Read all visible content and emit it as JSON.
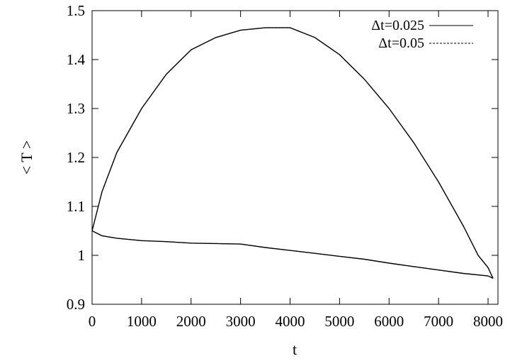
{
  "chart_data": {
    "type": "line",
    "title": "",
    "xlabel": "t",
    "ylabel": "< T >",
    "xlim": [
      0,
      8200
    ],
    "ylim": [
      0.9,
      1.5
    ],
    "xticks": [
      0,
      1000,
      2000,
      3000,
      4000,
      5000,
      6000,
      7000,
      8000
    ],
    "xtick_labels": [
      "0",
      "1000",
      "2000",
      "3000",
      "4000",
      "5000",
      "6000",
      "7000",
      "8000"
    ],
    "yticks": [
      0.9,
      1.0,
      1.1,
      1.2,
      1.3,
      1.4,
      1.5
    ],
    "ytick_labels": [
      "0.9",
      "1",
      "1.1",
      "1.2",
      "1.3",
      "1.4",
      "1.5"
    ],
    "grid": false,
    "legend_position": "top-right",
    "series": [
      {
        "name": "Δt=0.025",
        "style": "solid",
        "color": "#000000",
        "segments": [
          {
            "x": [
              0,
              200,
              500,
              1000,
              1500,
              2000,
              2500,
              3000,
              3500,
              4000,
              4500,
              5000,
              5500,
              6000,
              6500,
              7000,
              7500,
              8000,
              8100
            ],
            "y": [
              1.05,
              1.04,
              1.035,
              1.03,
              1.028,
              1.025,
              1.024,
              1.023,
              1.016,
              1.01,
              1.004,
              0.998,
              0.992,
              0.984,
              0.977,
              0.97,
              0.963,
              0.958,
              0.953
            ]
          },
          {
            "x": [
              0,
              200,
              500,
              1000,
              1500,
              2000,
              2500,
              3000,
              3500,
              4000,
              4500,
              5000,
              5500,
              6000,
              6500,
              7000,
              7500,
              7800,
              8000,
              8100
            ],
            "y": [
              1.05,
              1.13,
              1.21,
              1.3,
              1.37,
              1.42,
              1.445,
              1.46,
              1.465,
              1.465,
              1.445,
              1.41,
              1.36,
              1.3,
              1.23,
              1.15,
              1.06,
              1.0,
              0.975,
              0.953
            ]
          }
        ]
      },
      {
        "name": "Δt=0.05",
        "style": "dashed",
        "color": "#000000",
        "segments": [
          {
            "x": [
              0,
              200,
              500,
              1000,
              1500,
              2000,
              2500,
              3000,
              3500,
              4000,
              4500,
              5000,
              5500,
              6000,
              6500,
              7000,
              7500,
              8000,
              8100
            ],
            "y": [
              1.05,
              1.04,
              1.035,
              1.03,
              1.028,
              1.025,
              1.024,
              1.023,
              1.016,
              1.01,
              1.004,
              0.998,
              0.992,
              0.984,
              0.977,
              0.97,
              0.963,
              0.958,
              0.953
            ]
          },
          {
            "x": [
              0,
              200,
              500,
              1000,
              1500,
              2000,
              2500,
              3000,
              3500,
              4000,
              4500,
              5000,
              5500,
              6000,
              6500,
              7000,
              7500,
              7800,
              8000,
              8100
            ],
            "y": [
              1.05,
              1.13,
              1.21,
              1.3,
              1.37,
              1.42,
              1.445,
              1.46,
              1.465,
              1.465,
              1.445,
              1.41,
              1.36,
              1.3,
              1.23,
              1.15,
              1.06,
              1.0,
              0.975,
              0.953
            ]
          }
        ]
      }
    ]
  }
}
